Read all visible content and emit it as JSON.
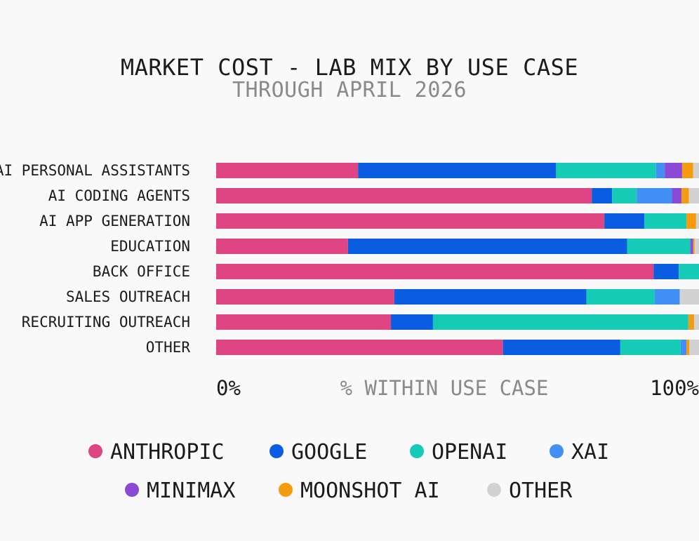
{
  "chart_data": {
    "type": "bar",
    "orientation": "horizontal",
    "stacked": true,
    "normalized": true,
    "title": "MARKET COST - LAB MIX BY USE CASE",
    "subtitle": "THROUGH APRIL 2026",
    "xlabel": "% WITHIN USE CASE",
    "xtick_labels": [
      "0%",
      "100%"
    ],
    "xlim": [
      0,
      100
    ],
    "grid": false,
    "legend_position": "bottom",
    "categories": [
      "AI PERSONAL ASSISTANTS",
      "AI CODING AGENTS",
      "AI APP GENERATION",
      "EDUCATION",
      "BACK OFFICE",
      "SALES OUTREACH",
      "RECRUITING OUTREACH",
      "OTHER"
    ],
    "series": [
      {
        "name": "ANTHROPIC",
        "color": "#e04583",
        "values": [
          29.4,
          77.8,
          80.4,
          27.3,
          90.6,
          36.9,
          36.2,
          59.4
        ]
      },
      {
        "name": "GOOGLE",
        "color": "#0a5ce0",
        "values": [
          41.0,
          4.2,
          8.3,
          57.8,
          5.2,
          39.8,
          8.7,
          24.3
        ]
      },
      {
        "name": "OPENAI",
        "color": "#16cbb5",
        "values": [
          20.7,
          5.1,
          8.7,
          13.1,
          4.2,
          14.1,
          52.9,
          12.5
        ]
      },
      {
        "name": "XAI",
        "color": "#4290f5",
        "values": [
          1.8,
          7.3,
          0.0,
          0.0,
          0.0,
          5.2,
          0.0,
          1.2
        ]
      },
      {
        "name": "MINIMAX",
        "color": "#8b4ad6",
        "values": [
          3.6,
          2.0,
          0.0,
          0.6,
          0.0,
          0.0,
          0.0,
          0.0
        ]
      },
      {
        "name": "MOONSHOT AI",
        "color": "#f59b10",
        "values": [
          2.3,
          1.5,
          2.0,
          0.3,
          0.0,
          0.0,
          1.2,
          0.6
        ]
      },
      {
        "name": "OTHER",
        "color": "#d2d2d2",
        "values": [
          1.2,
          2.1,
          0.6,
          0.9,
          0.0,
          4.0,
          1.0,
          2.0
        ]
      }
    ]
  }
}
